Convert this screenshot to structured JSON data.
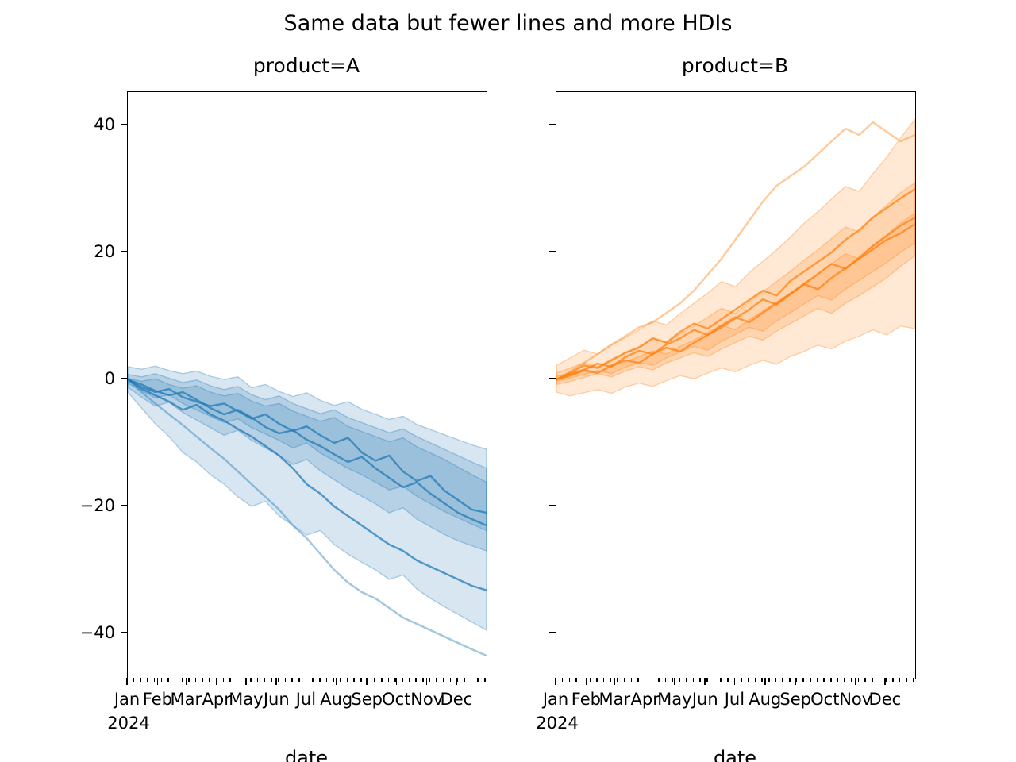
{
  "figure": {
    "title": "Same data but fewer lines and more HDIs",
    "year_label": "2024",
    "xlabel": "date"
  },
  "colors": {
    "product_a": "#1f77b4",
    "product_b": "#ff7f0e",
    "spine": "#000000",
    "band_fill_opacity": 0.18,
    "band_stroke_opacity": 0.32,
    "line_opacity": 0.72,
    "light_line_opacity": 0.42
  },
  "y_axis": {
    "ticks": [
      40,
      20,
      0,
      -20,
      -40
    ],
    "tick_labels": [
      "40",
      "20",
      "0",
      "−20",
      "−40"
    ],
    "ylim": [
      -47.1,
      45.25
    ]
  },
  "x_axis": {
    "months": [
      "Jan",
      "Feb",
      "Mar",
      "Apr",
      "May",
      "Jun",
      "Jul",
      "Aug",
      "Sep",
      "Oct",
      "Nov",
      "Dec"
    ],
    "month_day_offsets": [
      0,
      31,
      60,
      91,
      121,
      152,
      182,
      213,
      244,
      274,
      305,
      335
    ],
    "days_total": 365,
    "minor_step_days": 7
  },
  "chart_data": [
    {
      "type": "line",
      "facet": "product=A",
      "color": "#1f77b4",
      "x_days": [
        0,
        14,
        28,
        42,
        56,
        70,
        84,
        98,
        112,
        126,
        140,
        154,
        168,
        182,
        196,
        210,
        224,
        238,
        252,
        266,
        280,
        294,
        308,
        322,
        336,
        350,
        365
      ],
      "bands": [
        {
          "name": "hdi-wide",
          "top": [
            2.0,
            1.6,
            2.1,
            1.4,
            0.9,
            1.3,
            0.5,
            0.0,
            0.4,
            -1.3,
            -0.8,
            -1.9,
            -2.7,
            -2.1,
            -3.3,
            -4.1,
            -3.5,
            -4.7,
            -5.5,
            -6.3,
            -5.8,
            -7.1,
            -7.9,
            -8.7,
            -9.5,
            -10.3,
            -11.0
          ],
          "bottom": [
            -2.0,
            -4.5,
            -7.0,
            -9.0,
            -11.5,
            -13.0,
            -15.0,
            -16.5,
            -18.5,
            -20.0,
            -19.2,
            -21.5,
            -23.0,
            -24.5,
            -23.8,
            -26.0,
            -27.5,
            -28.8,
            -30.0,
            -31.5,
            -30.8,
            -33.0,
            -34.5,
            -35.8,
            -37.0,
            -38.2,
            -39.5
          ]
        },
        {
          "name": "hdi-mid",
          "top": [
            0.8,
            0.4,
            0.9,
            0.2,
            -0.5,
            -0.1,
            -1.0,
            -1.6,
            -1.1,
            -2.4,
            -3.2,
            -2.6,
            -3.8,
            -4.6,
            -5.4,
            -4.8,
            -6.0,
            -6.8,
            -7.6,
            -8.4,
            -7.8,
            -9.0,
            -10.0,
            -11.0,
            -12.0,
            -13.0,
            -14.0
          ],
          "bottom": [
            -1.2,
            -2.8,
            -4.2,
            -3.6,
            -5.2,
            -6.4,
            -7.6,
            -8.8,
            -8.0,
            -9.6,
            -10.8,
            -12.0,
            -13.4,
            -12.6,
            -14.4,
            -15.8,
            -17.2,
            -18.4,
            -19.6,
            -21.0,
            -20.2,
            -22.0,
            -23.2,
            -24.4,
            -25.4,
            -26.2,
            -27.0
          ]
        },
        {
          "name": "hdi-narrow",
          "top": [
            0.2,
            -0.3,
            0.1,
            -0.8,
            -1.4,
            -1.0,
            -2.0,
            -2.6,
            -2.2,
            -3.4,
            -4.2,
            -3.8,
            -5.0,
            -5.8,
            -6.6,
            -6.0,
            -7.4,
            -8.2,
            -9.0,
            -9.8,
            -9.2,
            -10.6,
            -11.6,
            -12.6,
            -13.8,
            -15.0,
            -16.2
          ],
          "bottom": [
            -0.6,
            -1.8,
            -2.9,
            -2.4,
            -3.8,
            -4.8,
            -5.8,
            -6.8,
            -6.2,
            -7.6,
            -8.6,
            -9.6,
            -10.8,
            -10.0,
            -11.6,
            -12.8,
            -14.0,
            -15.0,
            -16.2,
            -17.4,
            -16.8,
            -18.4,
            -19.6,
            -20.8,
            -21.8,
            -22.8,
            -23.8
          ]
        }
      ],
      "light_line": [
        0,
        -2.0,
        -3.8,
        -5.5,
        -7.2,
        -9.0,
        -10.8,
        -12.5,
        -14.5,
        -16.5,
        -18.5,
        -20.5,
        -23.0,
        -25.0,
        -27.5,
        -30.0,
        -32.0,
        -33.5,
        -34.5,
        -36.0,
        -37.5,
        -38.5,
        -39.5,
        -40.5,
        -41.5,
        -42.5,
        -43.5
      ],
      "lines": [
        {
          "name": "sample-1",
          "values": [
            0,
            -1.2,
            -2.0,
            -1.5,
            -2.8,
            -3.5,
            -4.2,
            -3.8,
            -5.0,
            -6.2,
            -5.5,
            -7.0,
            -8.1,
            -7.4,
            -8.8,
            -10.0,
            -9.2,
            -11.5,
            -12.8,
            -12.0,
            -14.5,
            -16.0,
            -15.2,
            -17.5,
            -19.0,
            -20.5,
            -21.0
          ]
        },
        {
          "name": "sample-2",
          "values": [
            0,
            -0.8,
            -1.8,
            -2.5,
            -2.0,
            -3.2,
            -4.5,
            -5.5,
            -4.8,
            -6.0,
            -7.5,
            -8.5,
            -8.0,
            -9.5,
            -10.5,
            -11.8,
            -13.0,
            -12.2,
            -14.0,
            -15.5,
            -17.0,
            -16.2,
            -18.0,
            -19.5,
            -21.0,
            -22.0,
            -23.0
          ]
        },
        {
          "name": "sample-3",
          "values": [
            0,
            -1.5,
            -2.5,
            -3.5,
            -4.8,
            -4.0,
            -5.5,
            -6.5,
            -7.8,
            -9.0,
            -10.5,
            -12.0,
            -14.0,
            -16.5,
            -18.0,
            -20.0,
            -21.5,
            -23.0,
            -24.5,
            -26.0,
            -27.0,
            -28.5,
            -29.5,
            -30.5,
            -31.5,
            -32.5,
            -33.2
          ]
        }
      ]
    },
    {
      "type": "line",
      "facet": "product=B",
      "color": "#ff7f0e",
      "x_days": [
        0,
        14,
        28,
        42,
        56,
        70,
        84,
        98,
        112,
        126,
        140,
        154,
        168,
        182,
        196,
        210,
        224,
        238,
        252,
        266,
        280,
        294,
        308,
        322,
        336,
        350,
        365
      ],
      "bands": [
        {
          "name": "hdi-wide",
          "top": [
            2.2,
            3.4,
            4.6,
            4.0,
            5.4,
            6.6,
            7.8,
            9.2,
            8.6,
            10.4,
            12.0,
            13.6,
            15.4,
            14.6,
            16.8,
            18.6,
            20.4,
            22.4,
            24.6,
            26.4,
            28.4,
            30.4,
            29.6,
            32.4,
            35.0,
            38.0,
            41.0
          ],
          "bottom": [
            -2.0,
            -2.6,
            -2.1,
            -1.6,
            -2.2,
            -1.2,
            -0.6,
            -1.1,
            -0.2,
            0.6,
            0.1,
            1.0,
            1.8,
            1.2,
            2.2,
            3.0,
            2.4,
            3.6,
            4.4,
            5.4,
            4.8,
            6.0,
            6.8,
            7.8,
            7.0,
            8.4,
            8.0
          ]
        },
        {
          "name": "hdi-mid",
          "top": [
            1.0,
            1.8,
            2.6,
            2.0,
            3.2,
            4.2,
            5.2,
            6.4,
            5.8,
            7.2,
            8.4,
            9.8,
            11.2,
            10.4,
            12.2,
            13.8,
            15.4,
            17.0,
            18.8,
            20.4,
            22.2,
            24.0,
            23.2,
            25.6,
            27.4,
            29.4,
            31.0
          ],
          "bottom": [
            -0.8,
            -0.3,
            0.3,
            0.9,
            0.4,
            1.3,
            2.0,
            1.5,
            2.6,
            3.4,
            4.2,
            3.6,
            4.8,
            5.8,
            6.8,
            6.2,
            7.6,
            8.8,
            10.0,
            11.2,
            10.4,
            12.0,
            13.2,
            14.6,
            16.0,
            17.8,
            19.5
          ]
        },
        {
          "name": "hdi-narrow",
          "top": [
            0.5,
            1.0,
            1.6,
            1.1,
            2.0,
            2.8,
            3.6,
            4.5,
            4.0,
            5.2,
            6.2,
            7.4,
            8.6,
            7.8,
            9.4,
            10.8,
            12.2,
            13.6,
            15.2,
            16.6,
            18.2,
            19.8,
            19.0,
            21.2,
            22.8,
            24.6,
            26.2
          ],
          "bottom": [
            -0.3,
            0.2,
            0.8,
            1.4,
            0.9,
            1.9,
            2.7,
            2.2,
            3.4,
            4.3,
            5.2,
            4.6,
            6.0,
            7.1,
            8.2,
            7.6,
            9.2,
            10.5,
            11.9,
            13.2,
            12.5,
            14.2,
            15.6,
            17.0,
            18.4,
            20.0,
            21.5
          ]
        }
      ],
      "light_line": [
        0,
        1.2,
        2.6,
        4.0,
        5.5,
        6.8,
        8.2,
        9.0,
        10.5,
        12.0,
        14.0,
        16.5,
        19.0,
        22.0,
        25.0,
        28.0,
        30.5,
        32.0,
        33.5,
        35.5,
        37.5,
        39.5,
        38.5,
        40.5,
        39.0,
        37.5,
        38.5
      ],
      "lines": [
        {
          "name": "sample-1",
          "values": [
            0,
            1.0,
            2.2,
            1.8,
            3.0,
            4.2,
            5.0,
            6.5,
            5.8,
            7.5,
            8.8,
            8.0,
            9.5,
            11.0,
            12.5,
            14.0,
            13.2,
            15.5,
            17.0,
            18.5,
            20.0,
            22.0,
            23.5,
            25.5,
            27.0,
            28.5,
            30.0
          ]
        },
        {
          "name": "sample-2",
          "values": [
            0,
            0.8,
            1.5,
            2.5,
            2.0,
            3.5,
            4.5,
            4.0,
            5.5,
            6.5,
            7.8,
            7.0,
            8.5,
            9.8,
            9.0,
            10.5,
            12.0,
            13.5,
            15.0,
            14.2,
            16.0,
            17.5,
            19.0,
            20.5,
            22.0,
            23.0,
            24.5
          ]
        },
        {
          "name": "sample-3",
          "values": [
            0,
            0.6,
            1.4,
            1.0,
            2.2,
            3.0,
            2.6,
            4.0,
            5.0,
            4.4,
            5.8,
            7.0,
            8.2,
            9.6,
            11.0,
            12.6,
            11.8,
            13.4,
            15.0,
            16.6,
            18.2,
            17.4,
            19.2,
            21.0,
            22.6,
            24.2,
            25.5
          ]
        }
      ]
    }
  ]
}
